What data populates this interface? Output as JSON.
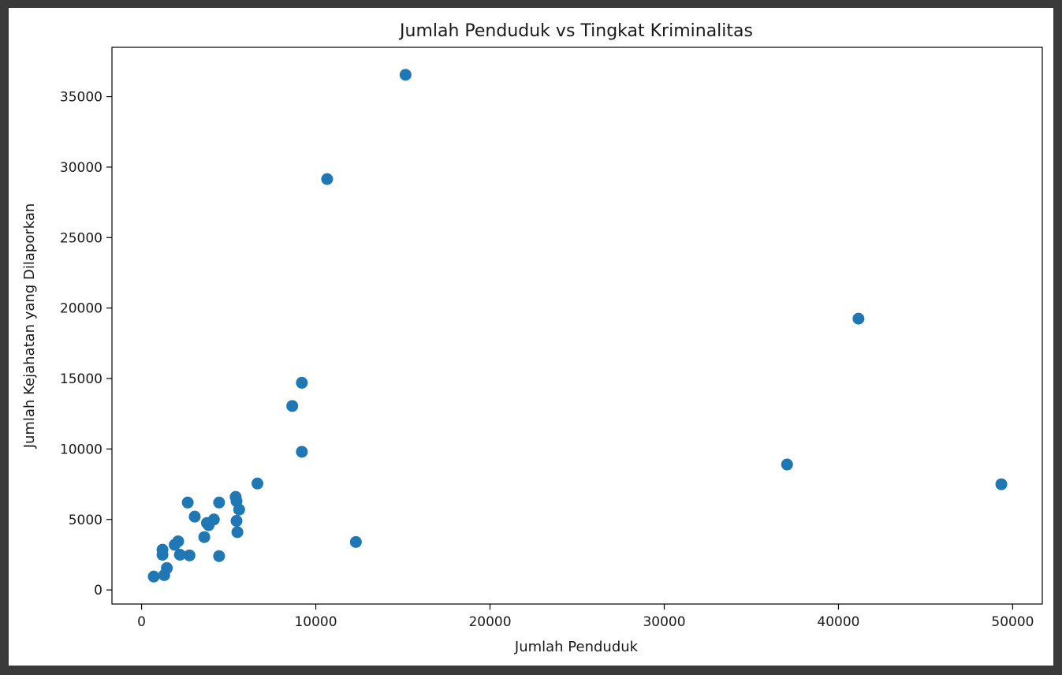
{
  "chart_data": {
    "type": "scatter",
    "title": "Jumlah Penduduk vs Tingkat Kriminalitas",
    "xlabel": "Jumlah Penduduk",
    "ylabel": "Jumlah Kejahatan yang Dilaporkan",
    "xlim": [
      -1700,
      51700
    ],
    "ylim": [
      -1000,
      38500
    ],
    "x_ticks": [
      0,
      10000,
      20000,
      30000,
      40000,
      50000
    ],
    "y_ticks": [
      0,
      5000,
      10000,
      15000,
      20000,
      25000,
      30000,
      35000
    ],
    "grid": false,
    "marker_color": "#1f77b4",
    "points": [
      {
        "x": 700,
        "y": 950
      },
      {
        "x": 1300,
        "y": 1050
      },
      {
        "x": 1450,
        "y": 1550
      },
      {
        "x": 1200,
        "y": 2500
      },
      {
        "x": 1200,
        "y": 2850
      },
      {
        "x": 1900,
        "y": 3200
      },
      {
        "x": 2100,
        "y": 3450
      },
      {
        "x": 2200,
        "y": 2500
      },
      {
        "x": 2750,
        "y": 2450
      },
      {
        "x": 2650,
        "y": 6200
      },
      {
        "x": 3050,
        "y": 5200
      },
      {
        "x": 3600,
        "y": 3750
      },
      {
        "x": 3750,
        "y": 4750
      },
      {
        "x": 3850,
        "y": 4600
      },
      {
        "x": 4150,
        "y": 5000
      },
      {
        "x": 4450,
        "y": 6200
      },
      {
        "x": 4450,
        "y": 2400
      },
      {
        "x": 5400,
        "y": 6600
      },
      {
        "x": 5450,
        "y": 6300
      },
      {
        "x": 5450,
        "y": 4900
      },
      {
        "x": 5600,
        "y": 5700
      },
      {
        "x": 5500,
        "y": 4100
      },
      {
        "x": 6650,
        "y": 7550
      },
      {
        "x": 8650,
        "y": 13050
      },
      {
        "x": 9200,
        "y": 14700
      },
      {
        "x": 9200,
        "y": 9800
      },
      {
        "x": 10650,
        "y": 29150
      },
      {
        "x": 12300,
        "y": 3400
      },
      {
        "x": 15150,
        "y": 36550
      },
      {
        "x": 37050,
        "y": 8900
      },
      {
        "x": 41150,
        "y": 19250
      },
      {
        "x": 49350,
        "y": 7500
      }
    ]
  }
}
